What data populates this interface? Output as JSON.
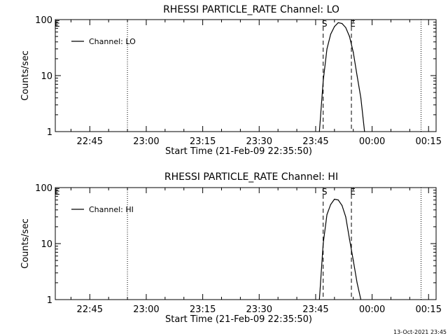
{
  "footer_timestamp": "13-Oct-2021 23:45",
  "chart_data": [
    {
      "type": "line",
      "title": "RHESSI PARTICLE_RATE Channel: LO",
      "xlabel": "Start Time (21-Feb-09 22:35:50)",
      "ylabel": "Counts/sec",
      "yscale": "log",
      "ylim": [
        1,
        100
      ],
      "yticks": [
        1,
        10,
        100
      ],
      "ytick_labels": [
        "1",
        "10",
        "100"
      ],
      "xlim": [
        "22:35:50",
        "00:17:00"
      ],
      "xticks": [
        "22:45",
        "23:00",
        "23:15",
        "23:30",
        "23:45",
        "00:00",
        "00:15"
      ],
      "legend": "top-left",
      "grid": false,
      "series": [
        {
          "name": "Channel: LO",
          "x": [
            "23:46:00",
            "23:47:00",
            "23:48:00",
            "23:49:00",
            "23:50:00",
            "23:51:00",
            "23:52:00",
            "23:53:00",
            "23:54:00",
            "23:55:00",
            "23:56:00",
            "23:57:00",
            "23:58:00"
          ],
          "y": [
            1,
            8,
            30,
            55,
            75,
            88,
            85,
            72,
            50,
            26,
            10,
            4,
            1
          ]
        }
      ],
      "markers": [
        {
          "label": "E",
          "time": "22:36:00",
          "style": "none"
        },
        {
          "label": "",
          "time": "22:55:00",
          "style": "dotted"
        },
        {
          "label": "S",
          "time": "23:47:00",
          "style": "dashed"
        },
        {
          "label": "E",
          "time": "23:54:30",
          "style": "dashed"
        },
        {
          "label": "",
          "time": "00:13:00",
          "style": "dotted"
        }
      ]
    },
    {
      "type": "line",
      "title": "RHESSI PARTICLE_RATE Channel: HI",
      "xlabel": "Start Time (21-Feb-09 22:35:50)",
      "ylabel": "Counts/sec",
      "yscale": "log",
      "ylim": [
        1,
        100
      ],
      "yticks": [
        1,
        10,
        100
      ],
      "ytick_labels": [
        "1",
        "10",
        "100"
      ],
      "xlim": [
        "22:35:50",
        "00:17:00"
      ],
      "xticks": [
        "22:45",
        "23:00",
        "23:15",
        "23:30",
        "23:45",
        "00:00",
        "00:15"
      ],
      "legend": "top-left",
      "grid": false,
      "series": [
        {
          "name": "Channel: HI",
          "x": [
            "23:46:00",
            "23:47:00",
            "23:48:00",
            "23:49:00",
            "23:50:00",
            "23:51:00",
            "23:52:00",
            "23:53:00",
            "23:54:00",
            "23:55:00",
            "23:56:00",
            "23:57:00"
          ],
          "y": [
            1,
            10,
            33,
            50,
            62,
            60,
            48,
            30,
            12,
            5,
            2,
            1
          ]
        }
      ],
      "markers": [
        {
          "label": "E",
          "time": "22:36:00",
          "style": "none"
        },
        {
          "label": "",
          "time": "22:55:00",
          "style": "dotted"
        },
        {
          "label": "S",
          "time": "23:47:00",
          "style": "dashed"
        },
        {
          "label": "E",
          "time": "23:54:30",
          "style": "dashed"
        },
        {
          "label": "",
          "time": "00:13:00",
          "style": "dotted"
        }
      ]
    }
  ]
}
